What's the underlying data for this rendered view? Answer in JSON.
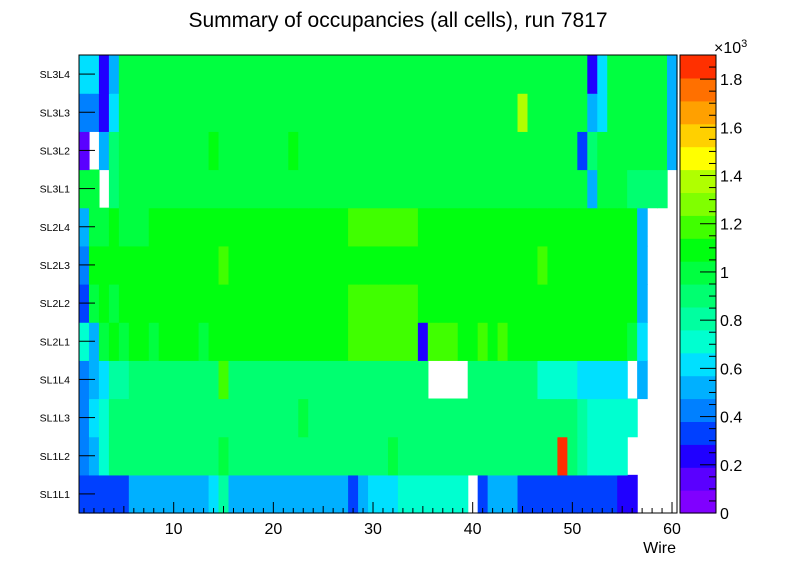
{
  "chart_data": {
    "type": "heatmap",
    "title": "Summary of occupancies (all cells),      run 7817",
    "xlabel": "Wire",
    "ylabel": "",
    "x_range": [
      0.5,
      60.5
    ],
    "x_ticks": [
      10,
      20,
      30,
      40,
      50,
      60
    ],
    "y_labels": [
      "SL1L1",
      "SL1L2",
      "SL1L3",
      "SL1L4",
      "SL2L1",
      "SL2L2",
      "SL2L3",
      "SL2L4",
      "SL3L1",
      "SL3L2",
      "SL3L3",
      "SL3L4"
    ],
    "z_range": [
      0,
      1900
    ],
    "z_ticks": [
      0,
      0.2,
      0.4,
      0.6,
      0.8,
      1,
      1.2,
      1.4,
      1.6,
      1.8
    ],
    "z_multiplier_label": "×10",
    "z_multiplier_exponent": "3",
    "palette": [
      "#8000ff",
      "#5a00ff",
      "#2000ff",
      "#0040ff",
      "#0080ff",
      "#00b0ff",
      "#00e0ff",
      "#00ffd0",
      "#00ffa0",
      "#00ff70",
      "#00ff40",
      "#00ff10",
      "#40ff00",
      "#80ff00",
      "#b0ff00",
      "#ffff00",
      "#ffd000",
      "#ffa000",
      "#ff7000",
      "#ff3000"
    ],
    "rows": [
      [
        320,
        320,
        340,
        340,
        340,
        480,
        480,
        480,
        480,
        480,
        480,
        480,
        480,
        640,
        760,
        480,
        480,
        480,
        480,
        480,
        480,
        480,
        480,
        480,
        480,
        480,
        480,
        340,
        480,
        640,
        640,
        640,
        700,
        700,
        700,
        700,
        700,
        700,
        700,
        0,
        320,
        480,
        480,
        480,
        340,
        340,
        340,
        340,
        340,
        340,
        340,
        340,
        340,
        340,
        280,
        280,
        0,
        0,
        0,
        0
      ],
      [
        400,
        520,
        700,
        880,
        860,
        860,
        860,
        880,
        860,
        880,
        880,
        920,
        860,
        900,
        960,
        880,
        880,
        880,
        880,
        880,
        920,
        880,
        880,
        880,
        880,
        880,
        880,
        880,
        880,
        880,
        880,
        960,
        880,
        880,
        880,
        880,
        880,
        880,
        880,
        880,
        880,
        880,
        900,
        880,
        880,
        880,
        880,
        860,
        1900,
        880,
        820,
        680,
        680,
        680,
        680,
        0,
        0,
        0,
        0,
        0
      ],
      [
        460,
        580,
        740,
        880,
        880,
        880,
        880,
        900,
        880,
        920,
        900,
        880,
        900,
        880,
        880,
        880,
        880,
        880,
        880,
        880,
        880,
        880,
        960,
        880,
        880,
        880,
        880,
        880,
        880,
        880,
        880,
        880,
        880,
        880,
        880,
        880,
        880,
        880,
        880,
        880,
        880,
        880,
        880,
        880,
        880,
        880,
        880,
        880,
        880,
        880,
        820,
        720,
        700,
        720,
        720,
        700,
        0,
        0,
        0,
        0
      ],
      [
        460,
        560,
        660,
        840,
        840,
        860,
        860,
        880,
        880,
        860,
        860,
        880,
        880,
        860,
        1200,
        860,
        860,
        880,
        880,
        880,
        880,
        880,
        880,
        880,
        880,
        880,
        880,
        880,
        880,
        880,
        900,
        880,
        880,
        880,
        880,
        0,
        0,
        0,
        0,
        880,
        880,
        880,
        880,
        900,
        860,
        860,
        740,
        740,
        740,
        740,
        640,
        640,
        640,
        640,
        640,
        0,
        540,
        0,
        0,
        0
      ],
      [
        680,
        560,
        1020,
        1050,
        1020,
        1080,
        1080,
        1020,
        1080,
        1080,
        1080,
        1080,
        1020,
        1080,
        1100,
        1100,
        1080,
        1080,
        1100,
        1080,
        1080,
        1100,
        1080,
        1080,
        1080,
        1080,
        1100,
        1150,
        1150,
        1200,
        1200,
        1150,
        1150,
        1150,
        200,
        1150,
        1150,
        1150,
        1100,
        1100,
        1150,
        1100,
        1150,
        1100,
        1100,
        1100,
        1100,
        1100,
        1100,
        1050,
        1100,
        1100,
        1050,
        1080,
        1050,
        1000,
        580,
        0,
        0,
        0
      ],
      [
        340,
        1040,
        1060,
        1020,
        1060,
        1080,
        1080,
        1080,
        1080,
        1080,
        1080,
        1100,
        1080,
        1080,
        1100,
        1080,
        1100,
        1080,
        1100,
        1080,
        1100,
        1100,
        1100,
        1080,
        1080,
        1100,
        1080,
        1150,
        1180,
        1180,
        1180,
        1180,
        1180,
        1180,
        1100,
        1080,
        1100,
        1100,
        1100,
        1100,
        1100,
        1100,
        1080,
        1100,
        1100,
        1100,
        1100,
        1100,
        1100,
        1100,
        1100,
        1100,
        1050,
        1100,
        1100,
        1100,
        480,
        0,
        0,
        0
      ],
      [
        460,
        1050,
        1060,
        1100,
        1080,
        1120,
        1100,
        1100,
        1100,
        1120,
        1100,
        1120,
        1100,
        1100,
        1150,
        1100,
        1100,
        1120,
        1100,
        1100,
        1120,
        1100,
        1100,
        1100,
        1100,
        1120,
        1100,
        1100,
        1100,
        1100,
        1100,
        1100,
        1100,
        1100,
        1100,
        1100,
        1100,
        1100,
        1100,
        1100,
        1100,
        1100,
        1100,
        1100,
        1100,
        1100,
        1150,
        1100,
        1100,
        1100,
        1100,
        1100,
        1100,
        1100,
        1100,
        1100,
        480,
        0,
        0,
        0
      ],
      [
        540,
        980,
        1020,
        1050,
        1020,
        1020,
        1020,
        1050,
        1050,
        1050,
        1050,
        1050,
        1050,
        1050,
        1050,
        1050,
        1050,
        1050,
        1100,
        1050,
        1050,
        1050,
        1050,
        1050,
        1080,
        1100,
        1100,
        1150,
        1200,
        1200,
        1200,
        1150,
        1150,
        1150,
        1100,
        1100,
        1100,
        1100,
        1100,
        1100,
        1100,
        1100,
        1050,
        1050,
        1050,
        1050,
        1050,
        1050,
        1050,
        1100,
        1050,
        1050,
        1050,
        1050,
        1050,
        1050,
        480,
        0,
        0,
        0
      ],
      [
        1000,
        1000,
        0,
        880,
        1000,
        1000,
        1000,
        1000,
        1000,
        1000,
        1000,
        1000,
        1000,
        1000,
        1000,
        1000,
        1000,
        1000,
        1000,
        1000,
        1000,
        1000,
        1000,
        1000,
        1000,
        1000,
        1000,
        1000,
        1000,
        1000,
        1000,
        1000,
        1000,
        1000,
        1000,
        1000,
        1000,
        1000,
        1000,
        1000,
        1000,
        1000,
        1000,
        1000,
        1000,
        1000,
        1000,
        1000,
        1000,
        1000,
        1000,
        480,
        1000,
        1000,
        1000,
        880,
        880,
        880,
        880,
        0
      ],
      [
        160,
        0,
        520,
        880,
        1040,
        1040,
        1040,
        1020,
        1040,
        1040,
        1040,
        1040,
        1040,
        1050,
        1040,
        1040,
        1020,
        1040,
        1040,
        1040,
        1040,
        1050,
        1040,
        1040,
        1040,
        1040,
        1040,
        1040,
        1040,
        1040,
        1040,
        1040,
        1040,
        1040,
        1040,
        1040,
        1040,
        1040,
        1040,
        1040,
        1040,
        1040,
        1040,
        1040,
        1040,
        1040,
        1040,
        1040,
        1040,
        1040,
        320,
        880,
        1040,
        1040,
        1040,
        1040,
        1040,
        1040,
        1040,
        480
      ],
      [
        400,
        400,
        260,
        640,
        1000,
        1000,
        1000,
        1000,
        1000,
        1000,
        1000,
        1000,
        1000,
        1000,
        1000,
        1000,
        1000,
        1000,
        1000,
        1000,
        1000,
        1000,
        1000,
        1000,
        1000,
        1000,
        1000,
        1000,
        1000,
        1000,
        1000,
        1000,
        1000,
        1000,
        1000,
        1000,
        1000,
        1000,
        1000,
        1000,
        1000,
        1000,
        1000,
        1000,
        1360,
        1000,
        1000,
        1000,
        1000,
        1000,
        1000,
        480,
        640,
        1000,
        1000,
        1000,
        1000,
        1000,
        1000,
        560
      ],
      [
        640,
        640,
        260,
        520,
        1020,
        1020,
        1040,
        1040,
        1040,
        1040,
        1040,
        1040,
        1040,
        1020,
        1040,
        1040,
        1040,
        1040,
        1040,
        1040,
        1040,
        1040,
        1040,
        1040,
        1040,
        1040,
        1040,
        1040,
        1040,
        1040,
        1040,
        1040,
        1040,
        1040,
        1040,
        1040,
        1040,
        1040,
        1040,
        1040,
        1040,
        1040,
        1040,
        1040,
        1040,
        1040,
        1040,
        1040,
        1040,
        1040,
        1040,
        220,
        640,
        1040,
        1040,
        1040,
        1040,
        1040,
        1040,
        560
      ]
    ]
  }
}
